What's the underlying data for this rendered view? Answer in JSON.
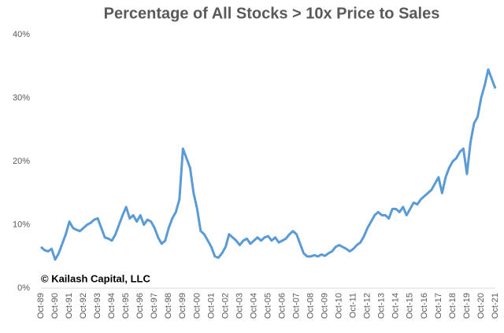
{
  "chart_data": {
    "type": "line",
    "title": "Percentage of All Stocks > 10x Price to Sales",
    "annotation": "© Kailash Capital, LLC",
    "color": "#5b9bd5",
    "categories": [
      "Oct-89",
      null,
      null,
      null,
      "Oct-90",
      null,
      null,
      null,
      "Oct-91",
      null,
      null,
      null,
      "Oct-92",
      null,
      null,
      null,
      "Oct-93",
      null,
      null,
      null,
      "Oct-94",
      null,
      null,
      null,
      "Oct-95",
      null,
      null,
      null,
      "Oct-96",
      null,
      null,
      null,
      "Oct-97",
      null,
      null,
      null,
      "Oct-98",
      null,
      null,
      null,
      "Oct-99",
      null,
      null,
      null,
      "Oct-00",
      null,
      null,
      null,
      "Oct-01",
      null,
      null,
      null,
      "Oct-02",
      null,
      null,
      null,
      "Oct-03",
      null,
      null,
      null,
      "Oct-04",
      null,
      null,
      null,
      "Oct-05",
      null,
      null,
      null,
      "Oct-06",
      null,
      null,
      null,
      "Oct-07",
      null,
      null,
      null,
      "Oct-08",
      null,
      null,
      null,
      "Oct-09",
      null,
      null,
      null,
      "Oct-10",
      null,
      null,
      null,
      "Oct-11",
      null,
      null,
      null,
      "Oct-12",
      null,
      null,
      null,
      "Oct-13",
      null,
      null,
      null,
      "Oct-14",
      null,
      null,
      null,
      "Oct-15",
      null,
      null,
      null,
      "Oct-16",
      null,
      null,
      null,
      "Oct-17",
      null,
      null,
      null,
      "Oct-18",
      null,
      null,
      null,
      "Oct-19",
      null,
      null,
      null,
      "Oct-20",
      null,
      null,
      null,
      "Oct-21"
    ],
    "values": [
      6.5,
      6,
      5.8,
      6.2,
      4.5,
      5.5,
      7,
      8.5,
      10.5,
      9.5,
      9.2,
      9,
      9.5,
      10,
      10.3,
      10.8,
      11,
      9.5,
      8,
      7.8,
      7.5,
      8.5,
      10,
      11.5,
      12.8,
      11,
      11.5,
      10.5,
      11.5,
      10,
      10.8,
      10.5,
      9.5,
      8,
      7,
      7.5,
      9.5,
      11,
      12,
      14,
      22,
      20.5,
      19,
      15,
      12.5,
      9,
      8.5,
      7.5,
      6.5,
      5,
      4.8,
      5.5,
      6.5,
      8.5,
      8,
      7.5,
      6.8,
      7.5,
      7.8,
      7,
      7.5,
      8,
      7.5,
      8,
      8.2,
      7.5,
      8,
      7.2,
      7.5,
      7.8,
      8.5,
      9,
      8.5,
      7,
      5.5,
      5,
      5,
      5.2,
      5,
      5.3,
      5.1,
      5.5,
      5.8,
      6.5,
      6.8,
      6.5,
      6.2,
      5.8,
      6.2,
      6.8,
      7.2,
      8.2,
      9.5,
      10.5,
      11.5,
      12,
      11.5,
      11.5,
      11,
      12.5,
      12.5,
      12,
      12.8,
      11.5,
      12.5,
      13.5,
      13.2,
      14,
      14.5,
      15,
      15.5,
      16.5,
      17.5,
      15,
      17.5,
      19,
      20,
      20.5,
      21.5,
      22,
      18,
      23,
      26,
      27,
      30,
      32,
      34.5,
      33,
      31.5
    ],
    "ylim": [
      0,
      40
    ],
    "yticks": [
      {
        "value": 0,
        "label": "0%"
      },
      {
        "value": 10,
        "label": "10%"
      },
      {
        "value": 20,
        "label": "20%"
      },
      {
        "value": 30,
        "label": "30%"
      },
      {
        "value": 40,
        "label": "40%"
      }
    ],
    "grid": false
  }
}
